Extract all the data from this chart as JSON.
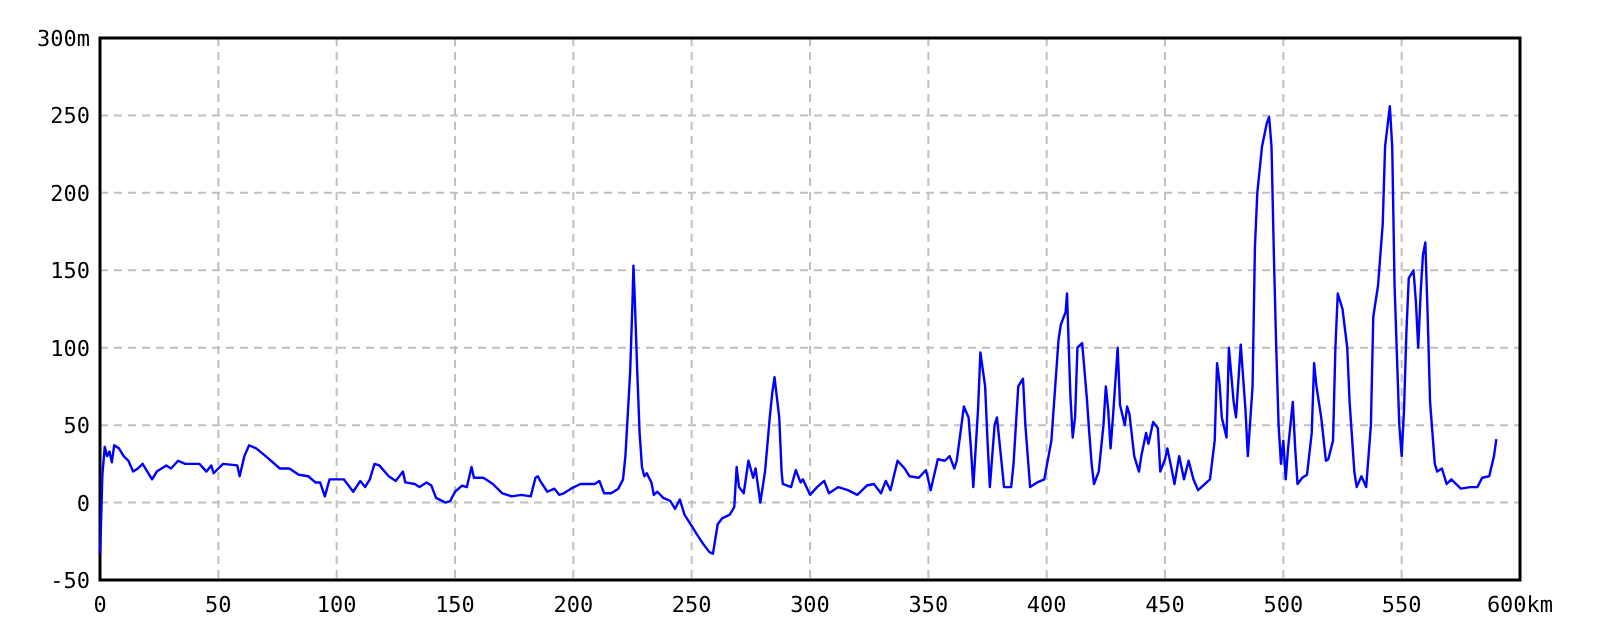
{
  "chart_data": {
    "type": "line",
    "x": [
      0,
      0.5,
      1,
      2,
      3,
      4,
      5,
      6,
      8,
      10,
      12,
      14,
      16,
      18,
      20,
      22,
      24,
      28,
      30,
      33,
      36,
      42,
      45,
      47,
      48,
      50,
      52,
      58,
      59,
      61,
      63,
      66,
      70,
      76,
      80,
      84,
      88,
      91,
      93,
      95,
      97,
      103,
      107,
      110,
      112,
      114,
      116,
      118,
      122,
      125,
      128,
      129,
      133,
      135,
      138,
      140,
      142,
      146,
      148,
      150,
      153,
      155,
      157,
      158,
      162,
      166,
      170,
      174,
      178,
      182,
      184,
      185,
      186,
      189,
      192,
      194,
      196,
      199,
      203,
      209,
      211,
      213,
      216,
      219,
      221,
      222,
      224,
      225,
      225.4,
      226,
      227,
      228,
      229,
      230,
      231,
      233,
      234,
      235.5,
      238,
      241,
      243,
      245,
      247,
      250,
      252,
      255,
      257.5,
      259,
      261,
      263,
      266,
      268,
      269,
      270,
      272,
      274,
      276,
      277,
      279,
      281,
      283,
      284,
      285,
      287,
      288,
      288.5,
      292,
      294,
      296,
      297,
      300,
      303,
      306,
      308,
      312,
      316,
      320,
      324,
      327,
      330,
      332,
      334,
      337,
      340,
      342,
      346,
      349,
      351,
      354,
      357,
      359,
      361,
      362,
      364,
      365,
      367,
      368,
      369,
      371,
      372,
      374,
      375,
      376,
      378,
      379,
      380,
      382,
      385,
      386,
      388,
      390,
      391,
      393,
      396,
      399,
      402,
      405,
      406,
      408,
      408.6,
      410,
      411,
      412,
      413,
      415,
      417,
      418,
      419,
      420,
      422,
      424,
      425,
      426,
      427,
      428,
      430,
      431,
      433,
      434,
      435,
      437,
      439,
      440,
      442,
      443,
      445,
      447,
      448,
      450,
      451,
      453,
      454,
      456,
      458,
      460,
      462,
      464,
      469,
      471,
      472,
      473,
      474,
      476,
      477,
      479,
      480,
      482,
      484,
      485,
      487,
      488,
      489,
      491,
      493,
      494,
      495,
      496,
      497,
      498,
      499,
      500,
      501,
      502,
      504,
      505,
      506,
      508,
      510,
      512,
      513,
      514,
      516,
      518,
      519,
      521,
      522,
      523,
      525,
      527,
      528,
      530,
      531,
      533,
      535,
      537,
      538,
      540,
      542,
      543,
      545,
      546,
      547,
      549,
      550,
      551,
      552,
      553,
      555,
      556,
      557,
      558,
      559,
      560,
      561,
      562,
      564,
      565,
      567,
      569,
      571,
      575,
      579,
      582,
      584,
      587,
      589,
      590
    ],
    "values": [
      -33,
      -10,
      18,
      36,
      30,
      33,
      26,
      37,
      35,
      30,
      27,
      20,
      22,
      25,
      20,
      15,
      20,
      24,
      22,
      27,
      25,
      25,
      20,
      24,
      19,
      22,
      25,
      24,
      17,
      30,
      37,
      35,
      30,
      22,
      22,
      18,
      17,
      13,
      13,
      4,
      15,
      15,
      7,
      14,
      10,
      15,
      25,
      24,
      17,
      14,
      20,
      13,
      12,
      10,
      13,
      11,
      3,
      0,
      1,
      7,
      11,
      10,
      23,
      16,
      16,
      12,
      6,
      4,
      5,
      4,
      16,
      17,
      14,
      7,
      9,
      5,
      6,
      9,
      12,
      12,
      14,
      6,
      6,
      9,
      15,
      30,
      84,
      130,
      153,
      130,
      85,
      45,
      23,
      17,
      19,
      13,
      5,
      7,
      3,
      1,
      -4,
      2,
      -8,
      -15,
      -20,
      -27,
      -32,
      -33,
      -14,
      -10,
      -8,
      -3,
      23,
      10,
      6,
      27,
      16,
      22,
      0,
      20,
      55,
      70,
      81,
      55,
      20,
      12,
      10,
      21,
      13,
      15,
      5,
      10,
      14,
      6,
      10,
      8,
      5,
      11,
      12,
      6,
      14,
      8,
      27,
      22,
      17,
      16,
      21,
      8,
      28,
      27,
      30,
      22,
      27,
      50,
      62,
      55,
      35,
      10,
      60,
      97,
      75,
      40,
      10,
      50,
      55,
      40,
      10,
      10,
      25,
      75,
      80,
      50,
      10,
      13,
      15,
      40,
      105,
      115,
      123,
      135,
      70,
      42,
      55,
      100,
      103,
      67,
      45,
      25,
      12,
      20,
      50,
      75,
      60,
      35,
      55,
      100,
      63,
      50,
      62,
      57,
      30,
      20,
      30,
      45,
      38,
      52,
      48,
      20,
      28,
      35,
      20,
      12,
      30,
      15,
      27,
      15,
      8,
      15,
      40,
      90,
      78,
      55,
      42,
      100,
      65,
      55,
      102,
      60,
      30,
      75,
      165,
      200,
      230,
      245,
      249,
      230,
      160,
      100,
      50,
      25,
      40,
      15,
      35,
      65,
      35,
      12,
      16,
      18,
      45,
      90,
      75,
      55,
      27,
      28,
      40,
      100,
      135,
      125,
      100,
      65,
      20,
      10,
      17,
      10,
      50,
      120,
      140,
      180,
      230,
      256,
      230,
      140,
      50,
      30,
      60,
      110,
      145,
      150,
      130,
      100,
      135,
      160,
      168,
      120,
      65,
      25,
      20,
      22,
      12,
      15,
      9,
      10,
      10,
      16,
      17,
      30,
      41
    ],
    "color": "#0000ff",
    "xlim": [
      0,
      600
    ],
    "xticks": [
      0,
      50,
      100,
      150,
      200,
      250,
      300,
      350,
      400,
      450,
      500,
      550,
      {
        "value": 600,
        "label": "600km"
      }
    ],
    "ylim": [
      -50,
      300
    ],
    "yticks": [
      -50,
      0,
      50,
      100,
      150,
      200,
      250,
      {
        "value": 300,
        "label": "300m"
      }
    ],
    "grid": true
  }
}
